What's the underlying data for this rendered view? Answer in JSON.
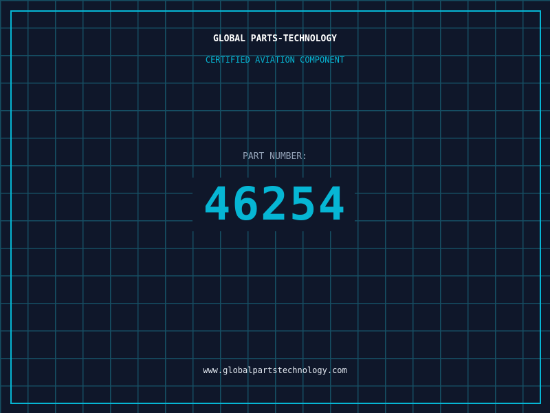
{
  "colors": {
    "background": "#0f172a",
    "accent": "#06b6d4",
    "grid": "#164e63"
  },
  "header": {
    "brand": "GLOBAL PARTS-TECHNOLOGY",
    "subtitle": "CERTIFIED AVIATION COMPONENT"
  },
  "part": {
    "label": "PART NUMBER:",
    "number": "46254"
  },
  "footer": {
    "url": "www.globalpartstechnology.com"
  }
}
